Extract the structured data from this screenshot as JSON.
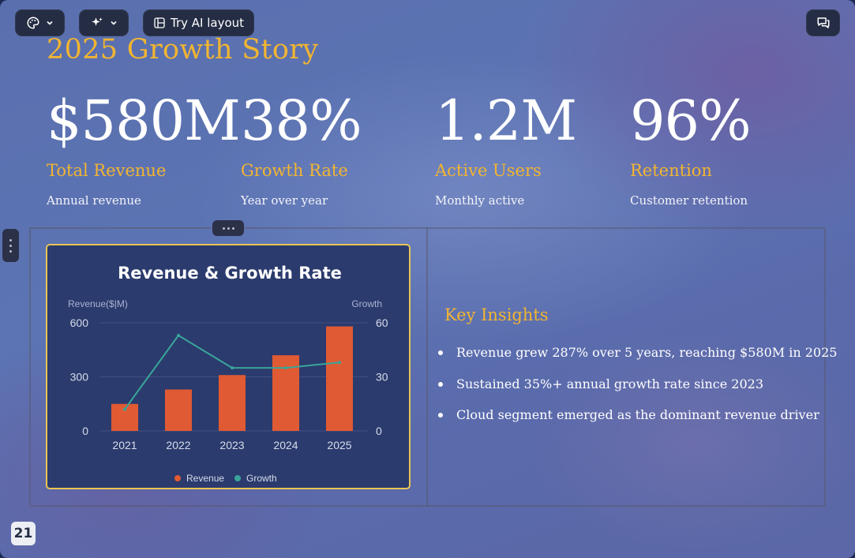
{
  "toolbar": {
    "theme_icon": "palette-icon",
    "ai_icon": "sparkles-icon",
    "ai_layout_label": "Try AI layout",
    "comment_icon": "chat-bubbles-icon"
  },
  "slide": {
    "title": "2025 Growth Story",
    "stats": [
      {
        "value": "$580M",
        "label": "Total Revenue",
        "sub": "Annual revenue"
      },
      {
        "value": "38%",
        "label": "Growth Rate",
        "sub": "Year over year"
      },
      {
        "value": "1.2M",
        "label": "Active Users",
        "sub": "Monthly active"
      },
      {
        "value": "96%",
        "label": "Retention",
        "sub": "Customer retention"
      }
    ],
    "insights_title": "Key Insights",
    "insights": [
      "Revenue grew 287% over 5 years, reaching $580M in 2025",
      "Sustained 35%+ annual growth rate since 2023",
      "Cloud segment emerged as the dominant revenue driver"
    ],
    "page_number": "21"
  },
  "colors": {
    "accent": "#f2b531",
    "bar": "#e05a33",
    "line": "#3aa59a",
    "chart_bg": "#2b3b6d"
  },
  "chart_data": {
    "type": "bar",
    "title": "Revenue & Growth Rate",
    "categories": [
      "2021",
      "2022",
      "2023",
      "2024",
      "2025"
    ],
    "ylabel": "Revenue($|M)",
    "y2label": "Growth",
    "ylim": [
      0,
      600
    ],
    "y2lim": [
      0,
      60
    ],
    "yticks": [
      "600",
      "300",
      "0"
    ],
    "y2ticks": [
      "60",
      "30",
      "0"
    ],
    "grid": true,
    "legend_position": "bottom",
    "series": [
      {
        "name": "Revenue",
        "type": "bar",
        "axis": "left",
        "values": [
          150,
          230,
          310,
          420,
          580
        ]
      },
      {
        "name": "Growth",
        "type": "line",
        "axis": "right",
        "values": [
          12,
          53,
          35,
          35,
          38
        ]
      }
    ]
  }
}
